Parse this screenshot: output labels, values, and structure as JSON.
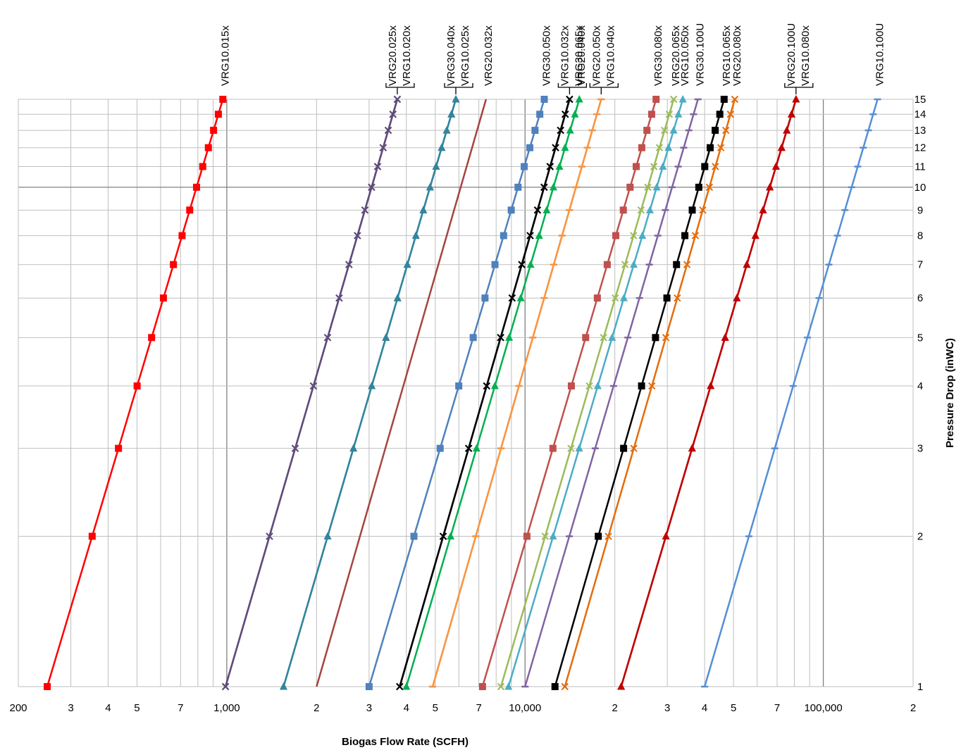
{
  "chart_data": {
    "type": "line",
    "xlabel": "Biogas Flow Rate (SCFH)",
    "ylabel": "Pressure Drop (inWC)",
    "x_scale": "log",
    "y_scale": "log",
    "xlim": [
      200,
      200000
    ],
    "ylim": [
      1,
      15
    ],
    "grid": true,
    "x_tick_labels": [
      {
        "value": 200,
        "label": "200"
      },
      {
        "value": 300,
        "label": "3"
      },
      {
        "value": 400,
        "label": "4"
      },
      {
        "value": 500,
        "label": "5"
      },
      {
        "value": 700,
        "label": "7"
      },
      {
        "value": 1000,
        "label": "1,000"
      },
      {
        "value": 2000,
        "label": "2"
      },
      {
        "value": 3000,
        "label": "3"
      },
      {
        "value": 4000,
        "label": "4"
      },
      {
        "value": 5000,
        "label": "5"
      },
      {
        "value": 7000,
        "label": "7"
      },
      {
        "value": 10000,
        "label": "10,000"
      },
      {
        "value": 20000,
        "label": "2"
      },
      {
        "value": 30000,
        "label": "3"
      },
      {
        "value": 40000,
        "label": "4"
      },
      {
        "value": 50000,
        "label": "5"
      },
      {
        "value": 70000,
        "label": "7"
      },
      {
        "value": 100000,
        "label": "100,000"
      },
      {
        "value": 200000,
        "label": "2"
      }
    ],
    "y_ticks": [
      1,
      2,
      3,
      4,
      5,
      6,
      7,
      8,
      9,
      10,
      11,
      12,
      13,
      14,
      15
    ],
    "pressure_points": [
      1,
      2,
      3,
      4,
      5,
      6,
      7,
      8,
      9,
      10,
      11,
      12,
      13,
      14,
      15
    ],
    "series": [
      {
        "name": "VRG10.015x",
        "color": "#ff0000",
        "marker": "square",
        "flow_at_1": 250,
        "flow_at_15": 970
      },
      {
        "name": "VRG20.025x",
        "color": "#604a7b",
        "marker": "x",
        "flow_at_1": 990,
        "flow_at_15": 3730
      },
      {
        "name": "VRG10.020x",
        "color": "#604a7b",
        "marker": "x",
        "flow_at_1": 990,
        "flow_at_15": 3730
      },
      {
        "name": "VRG30.040x",
        "color": "#31859c",
        "marker": "triangle",
        "flow_at_1": 1550,
        "flow_at_15": 5860
      },
      {
        "name": "VRG10.025x",
        "color": "#31859c",
        "marker": "triangle",
        "flow_at_1": 1550,
        "flow_at_15": 5860
      },
      {
        "name": "VRG20.032x",
        "color": "#a5443f",
        "marker": "none",
        "flow_at_1": 2000,
        "flow_at_15": 7400
      },
      {
        "name": "VRG30.050x",
        "color": "#4f81bd",
        "marker": "square",
        "flow_at_1": 3000,
        "flow_at_15": 11600
      },
      {
        "name": "VRG10.032x",
        "color": "#000000",
        "marker": "x",
        "flow_at_1": 3800,
        "flow_at_15": 14100
      },
      {
        "name": "VRG30.065x",
        "color": "#000000",
        "marker": "x",
        "flow_at_1": 3800,
        "flow_at_15": 14100
      },
      {
        "name": "VRG20.040x",
        "color": "#00b050",
        "marker": "triangle",
        "flow_at_1": 4000,
        "flow_at_15": 15200
      },
      {
        "name": "VRG20.050x",
        "color": "#f79646",
        "marker": "dash",
        "flow_at_1": 4900,
        "flow_at_15": 18000
      },
      {
        "name": "VRG10.040x",
        "color": "#f79646",
        "marker": "dash",
        "flow_at_1": 4900,
        "flow_at_15": 18000
      },
      {
        "name": "VRG30.080x",
        "color": "#c0504d",
        "marker": "square",
        "flow_at_1": 7200,
        "flow_at_15": 27500
      },
      {
        "name": "VRG20.065x",
        "color": "#9bbb59",
        "marker": "x",
        "flow_at_1": 8300,
        "flow_at_15": 31500
      },
      {
        "name": "VRG10.050x",
        "color": "#4bacc6",
        "marker": "triangle",
        "flow_at_1": 8800,
        "flow_at_15": 33800
      },
      {
        "name": "VRG30.100U",
        "color": "#8064a2",
        "marker": "dash",
        "flow_at_1": 10000,
        "flow_at_15": 38000
      },
      {
        "name": "VRG10.065x",
        "color": "#000000",
        "marker": "square",
        "flow_at_1": 12600,
        "flow_at_15": 46500
      },
      {
        "name": "VRG20.080x",
        "color": "#e46c0a",
        "marker": "x",
        "flow_at_1": 13600,
        "flow_at_15": 50500
      },
      {
        "name": "VRG20.100U",
        "color": "#c00000",
        "marker": "triangle",
        "flow_at_1": 21000,
        "flow_at_15": 81000
      },
      {
        "name": "VRG10.080x",
        "color": "#c00000",
        "marker": "triangle",
        "flow_at_1": 21000,
        "flow_at_15": 81000
      },
      {
        "name": "VRG10.100U",
        "color": "#558ed5",
        "marker": "dash",
        "flow_at_1": 40000,
        "flow_at_15": 152000
      }
    ]
  }
}
